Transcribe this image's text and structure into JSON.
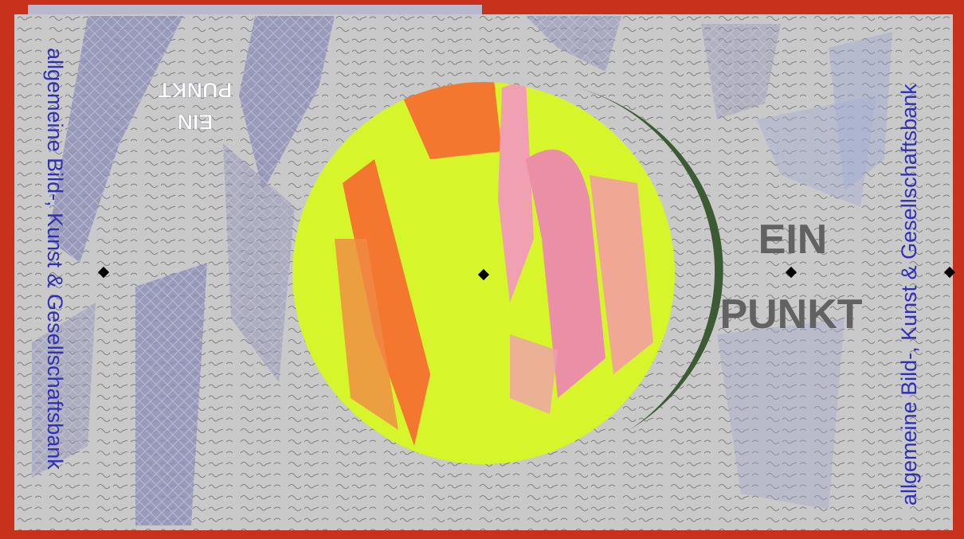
{
  "left_caption": "allgemeine Bild-, Kunst & Gesellschaftsbank",
  "right_caption": "allgemeine Bild-, Kunst & Gesellschaftsbank",
  "mirrored_title": {
    "line1": "EIN",
    "line2": "PUNKT"
  },
  "main_title": {
    "line1": "EIN",
    "line2": "PUNKT"
  }
}
